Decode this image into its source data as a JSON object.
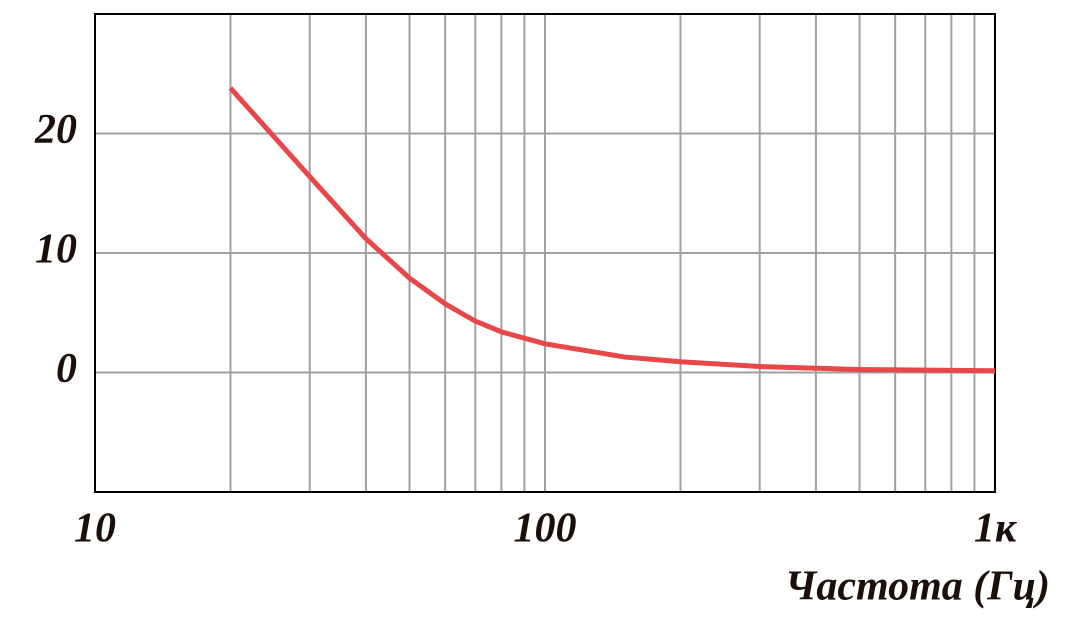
{
  "chart_data": {
    "type": "line",
    "x_label": "Частота (Гц)",
    "log_x": true,
    "xlim": [
      10,
      1000
    ],
    "xticks": [
      10,
      100,
      {
        "value": 1000,
        "label": "1к"
      }
    ],
    "xminor_ticks": [
      20,
      30,
      40,
      50,
      60,
      70,
      80,
      90,
      200,
      300,
      400,
      500,
      600,
      700,
      800,
      900
    ],
    "ylim": [
      -10,
      30
    ],
    "yticks": [
      0,
      10,
      20
    ],
    "grid": true,
    "series": [
      {
        "color": "#e8474a",
        "x": [
          20,
          30,
          40,
          50,
          60,
          70,
          80,
          100,
          150,
          200,
          300,
          500,
          1000
        ],
        "values": [
          23.8,
          16.4,
          11.2,
          7.9,
          5.75,
          4.3,
          3.4,
          2.4,
          1.3,
          0.9,
          0.5,
          0.25,
          0.15
        ]
      }
    ]
  }
}
